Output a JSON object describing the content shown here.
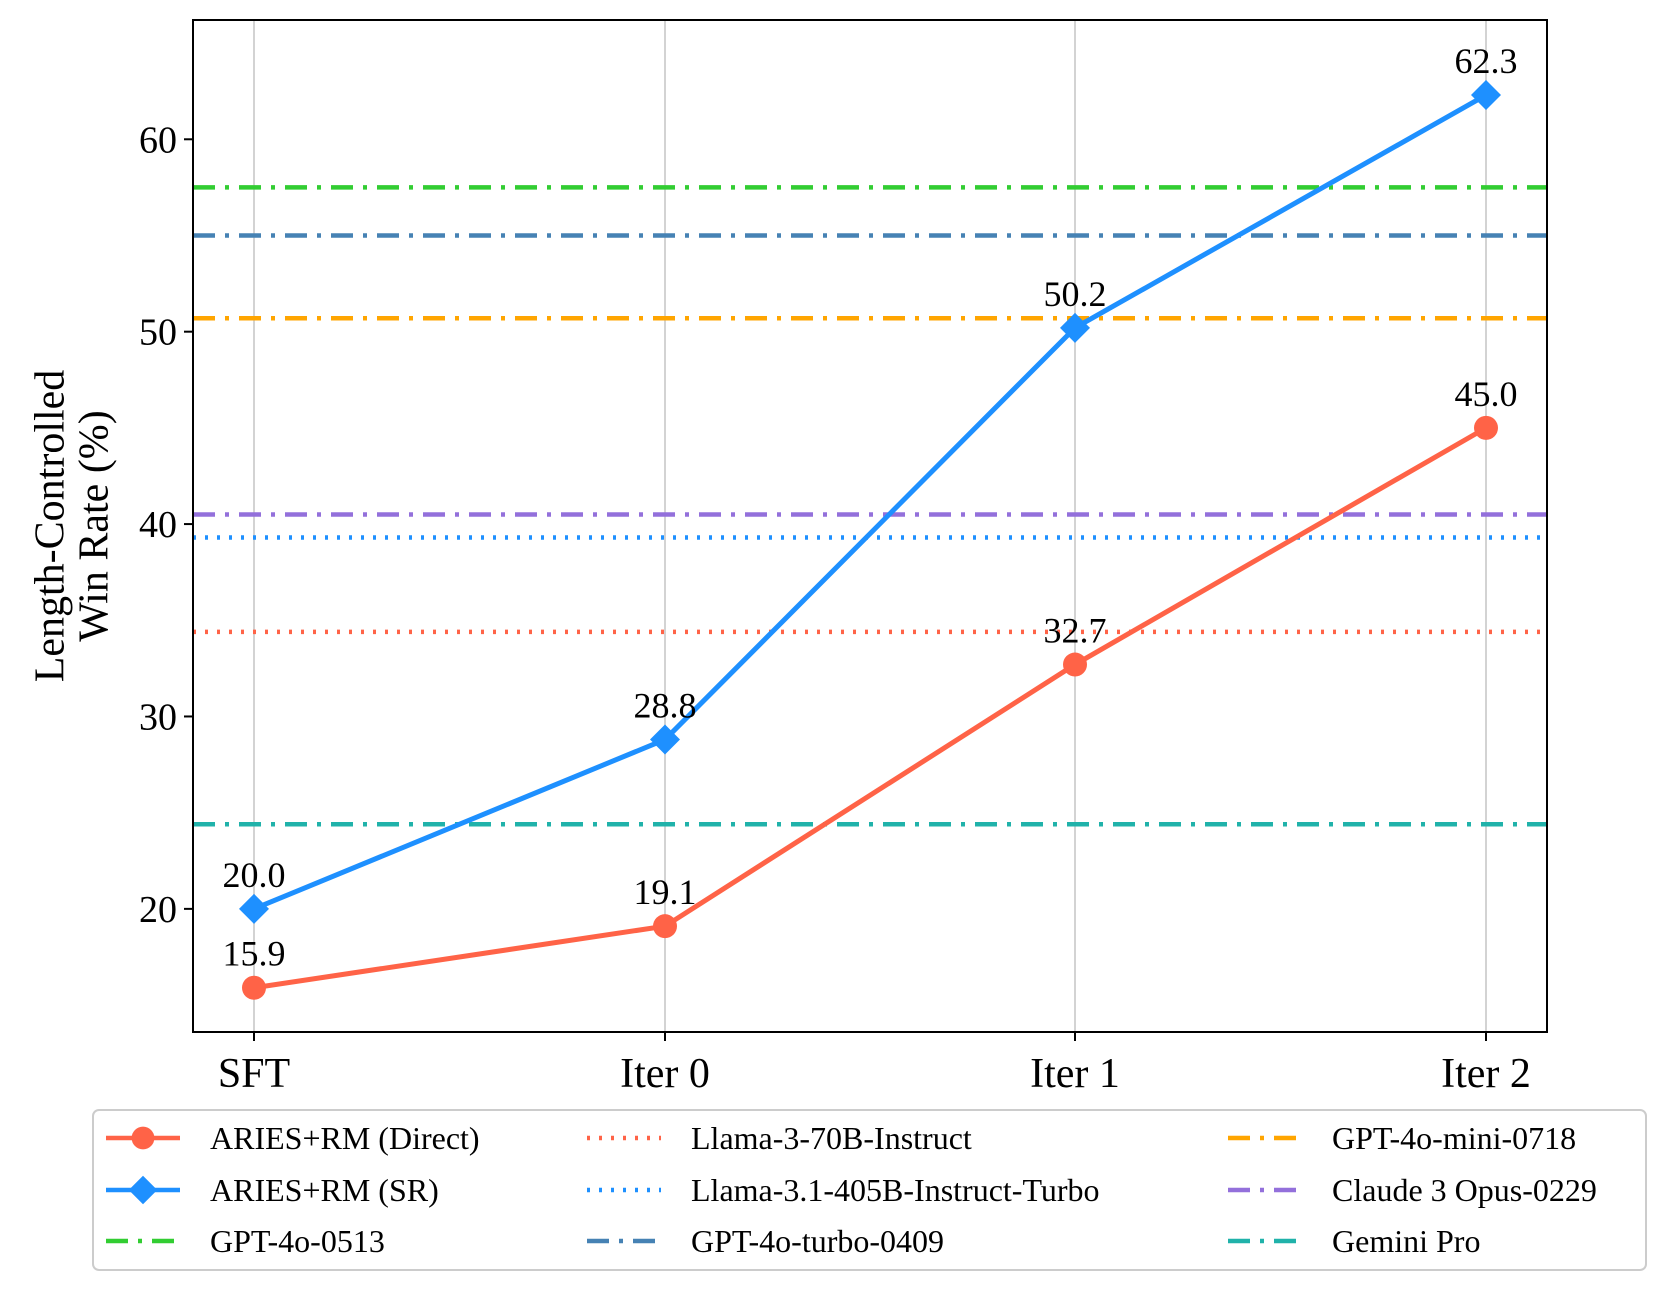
{
  "chart_data": {
    "type": "line",
    "categories": [
      "SFT",
      "Iter 0",
      "Iter 1",
      "Iter 2"
    ],
    "ylabel": "Length-Controlled\nWin Rate (%)",
    "ylim": [
      13.6,
      66.2
    ],
    "yticks": [
      20,
      30,
      40,
      50,
      60
    ],
    "grid": "vertical",
    "legend_position": "bottom",
    "series": [
      {
        "name": "ARIES+RM (Direct)",
        "values": [
          15.9,
          19.1,
          32.7,
          45.0
        ],
        "labels": [
          "15.9",
          "19.1",
          "32.7",
          "45.0"
        ],
        "color": "#FF6347",
        "marker": "circle"
      },
      {
        "name": "ARIES+RM (SR)",
        "values": [
          20.0,
          28.8,
          50.2,
          62.3
        ],
        "labels": [
          "20.0",
          "28.8",
          "50.2",
          "62.3"
        ],
        "color": "#1E90FF",
        "marker": "diamond"
      }
    ],
    "reference_lines": [
      {
        "name": "Llama-3-70B-Instruct",
        "value": 34.4,
        "color": "#FF6347",
        "style": "dotted"
      },
      {
        "name": "Llama-3.1-405B-Instruct-Turbo",
        "value": 39.3,
        "color": "#1E90FF",
        "style": "dotted"
      },
      {
        "name": "GPT-4o-0513",
        "value": 57.5,
        "color": "#32CD32",
        "style": "dashdot"
      },
      {
        "name": "GPT-4o-turbo-0409",
        "value": 55.0,
        "color": "#4682B4",
        "style": "dashdot"
      },
      {
        "name": "GPT-4o-mini-0718",
        "value": 50.7,
        "color": "#FFA500",
        "style": "dashdot"
      },
      {
        "name": "Claude 3 Opus-0229",
        "value": 40.5,
        "color": "#9370DB",
        "style": "dashdot"
      },
      {
        "name": "Gemini Pro",
        "value": 24.4,
        "color": "#20B2AA",
        "style": "dashdot"
      }
    ],
    "legend_order": [
      [
        "ARIES+RM (Direct)",
        "ARIES+RM (SR)",
        "GPT-4o-0513"
      ],
      [
        "Llama-3-70B-Instruct",
        "Llama-3.1-405B-Instruct-Turbo",
        "GPT-4o-turbo-0409"
      ],
      [
        "GPT-4o-mini-0718",
        "Claude 3 Opus-0229",
        "Gemini Pro"
      ]
    ]
  }
}
